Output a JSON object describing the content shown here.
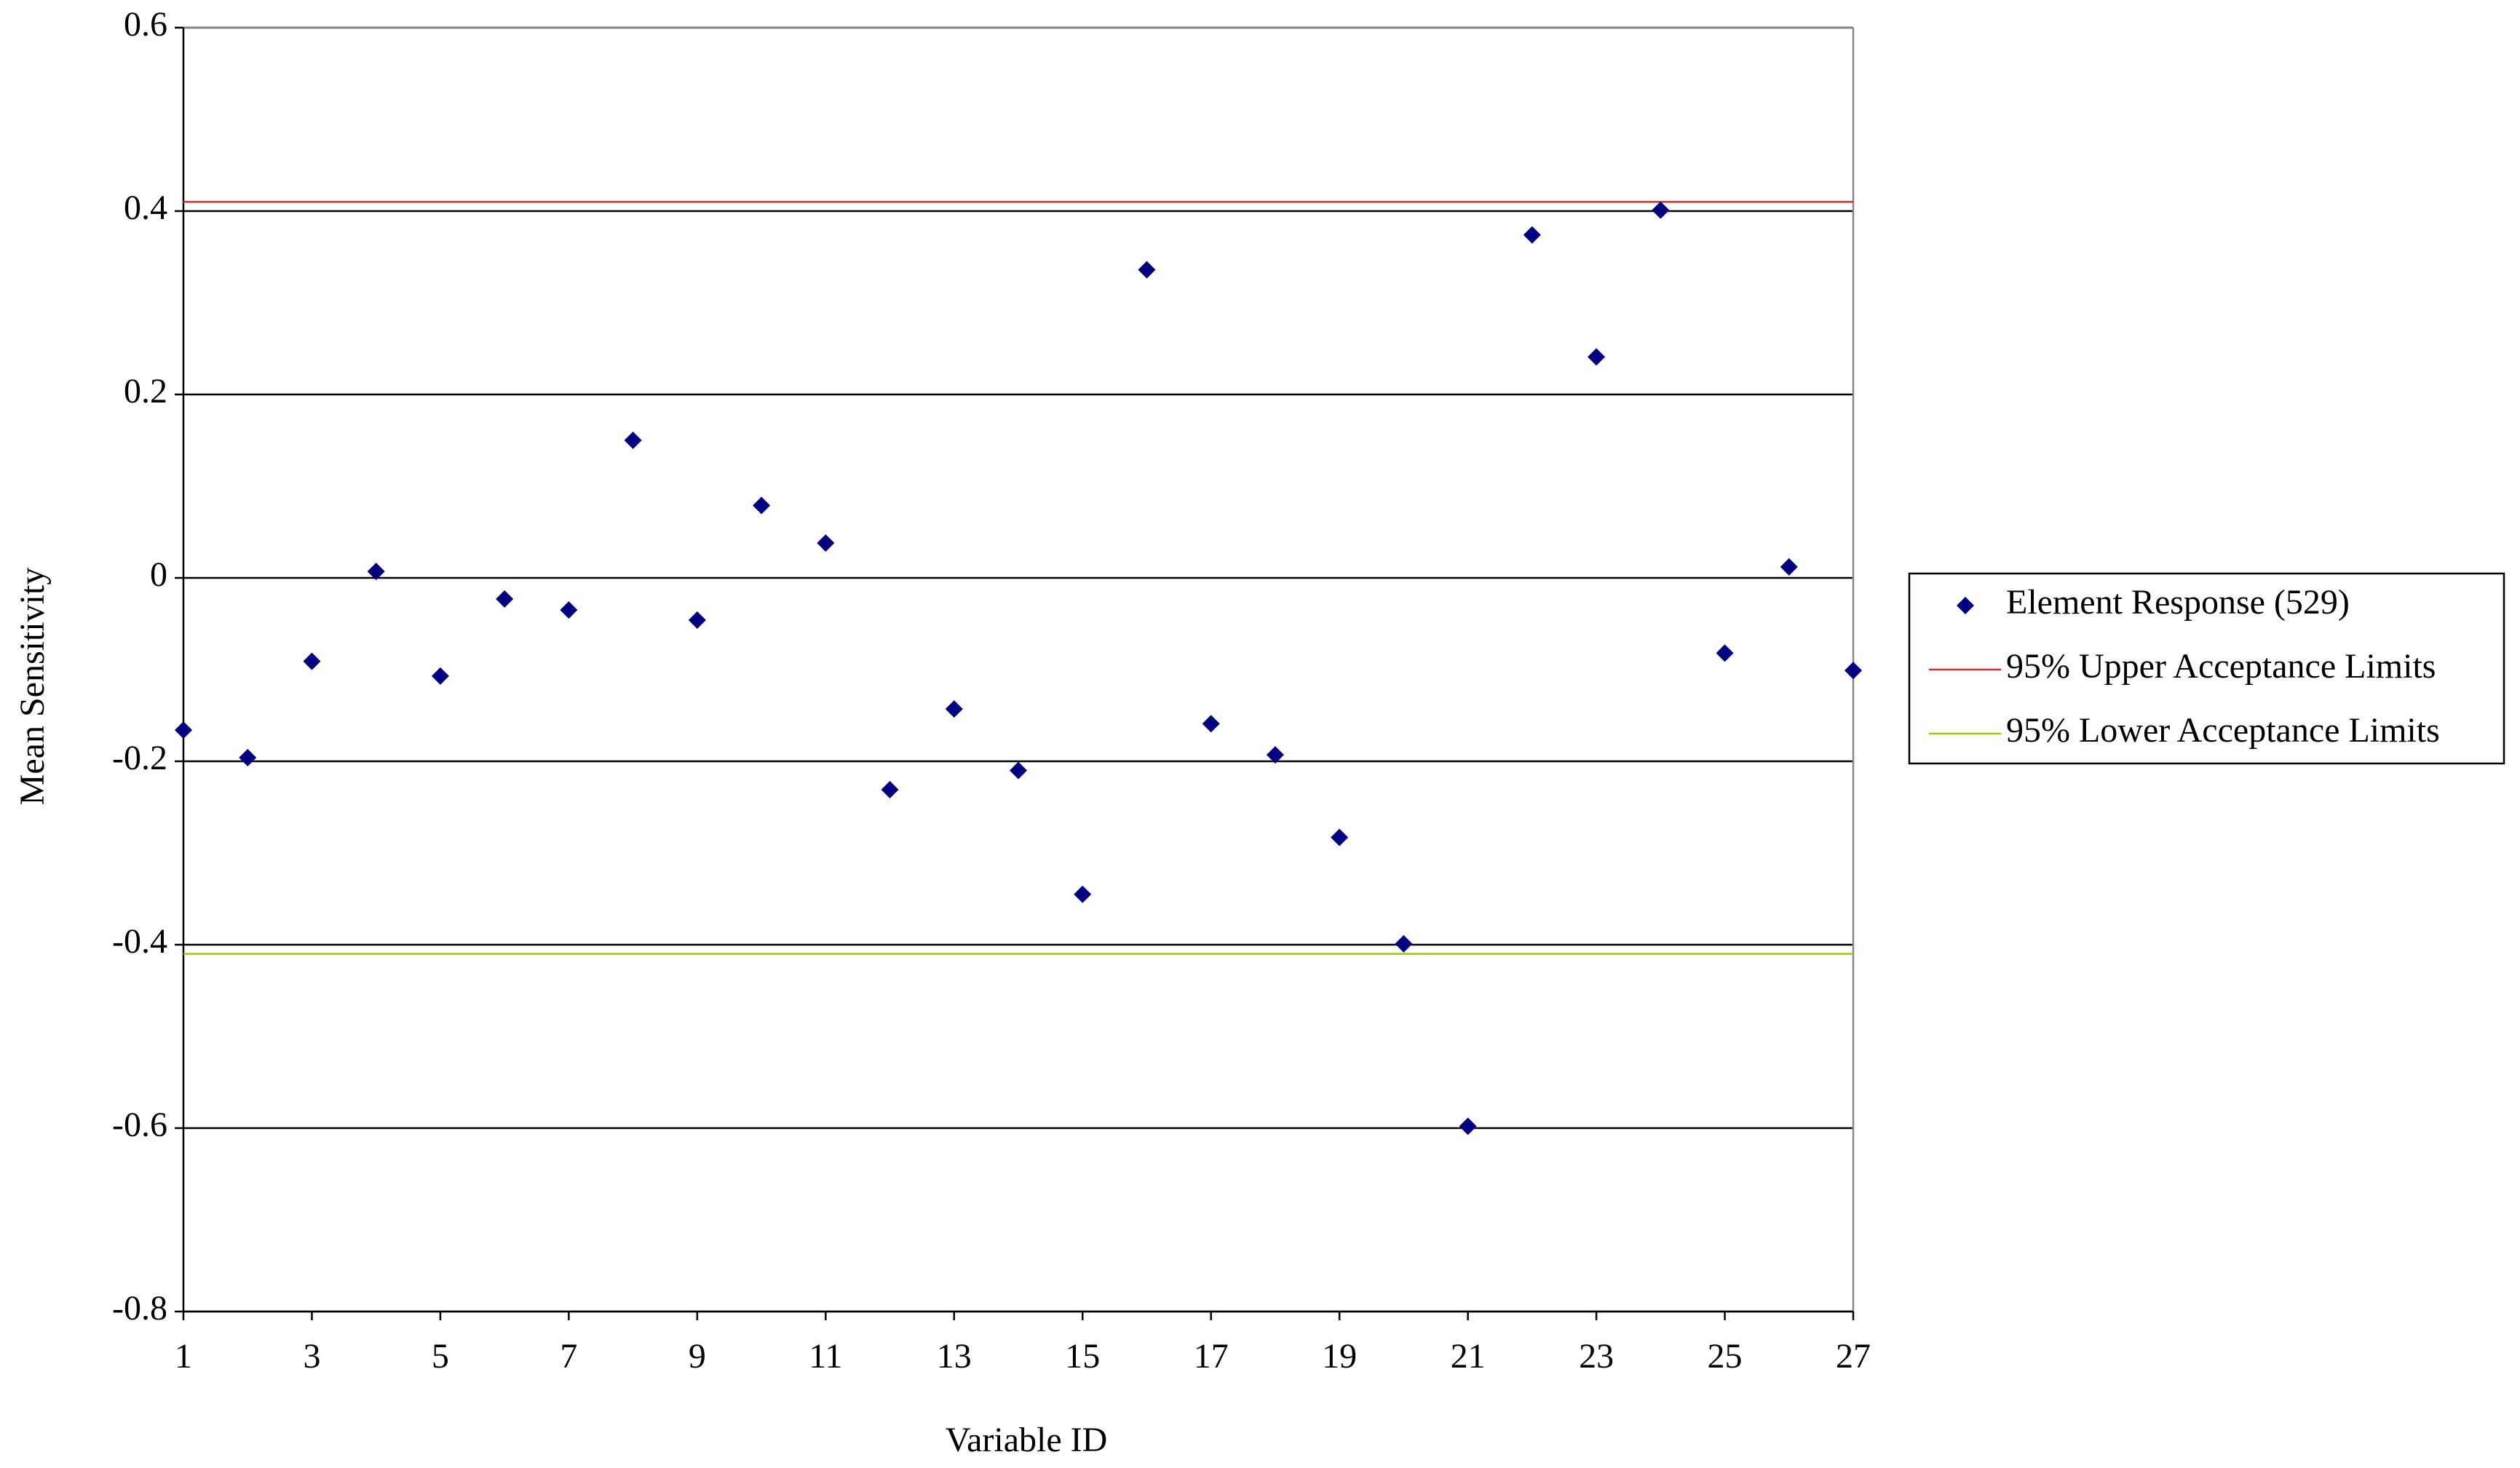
{
  "chart_data": {
    "type": "scatter",
    "xlabel": "Variable ID",
    "ylabel": "Mean Sensitivity",
    "xlim": [
      1,
      27
    ],
    "xticks": [
      1,
      3,
      5,
      7,
      9,
      11,
      13,
      15,
      17,
      19,
      21,
      23,
      25,
      27
    ],
    "ylim": [
      -0.8,
      0.6
    ],
    "yticks": [
      -0.8,
      -0.6,
      -0.4,
      -0.2,
      0,
      0.2,
      0.4,
      0.6
    ],
    "grid": true,
    "legend": "right",
    "series": [
      {
        "name": "Element Response (529)",
        "color": "#000080",
        "x": [
          1,
          2,
          3,
          4,
          5,
          6,
          7,
          8,
          9,
          10,
          11,
          12,
          13,
          14,
          15,
          16,
          17,
          18,
          19,
          20,
          21,
          22,
          23,
          24,
          25,
          26,
          27
        ],
        "values": [
          -0.166,
          -0.196,
          -0.091,
          0.007,
          -0.107,
          -0.023,
          -0.035,
          0.15,
          -0.046,
          0.079,
          0.038,
          -0.231,
          -0.143,
          -0.21,
          -0.345,
          0.336,
          -0.159,
          -0.193,
          -0.283,
          -0.399,
          -0.598,
          0.374,
          0.241,
          0.401,
          -0.082,
          0.012,
          -0.101
        ]
      }
    ],
    "reference_lines": [
      {
        "name": "95% Upper Acceptance Limits",
        "color": "#cc3333",
        "value": 0.41
      },
      {
        "name": "95% Lower Acceptance Limits",
        "color": "#99cc00",
        "value": -0.41
      }
    ]
  }
}
